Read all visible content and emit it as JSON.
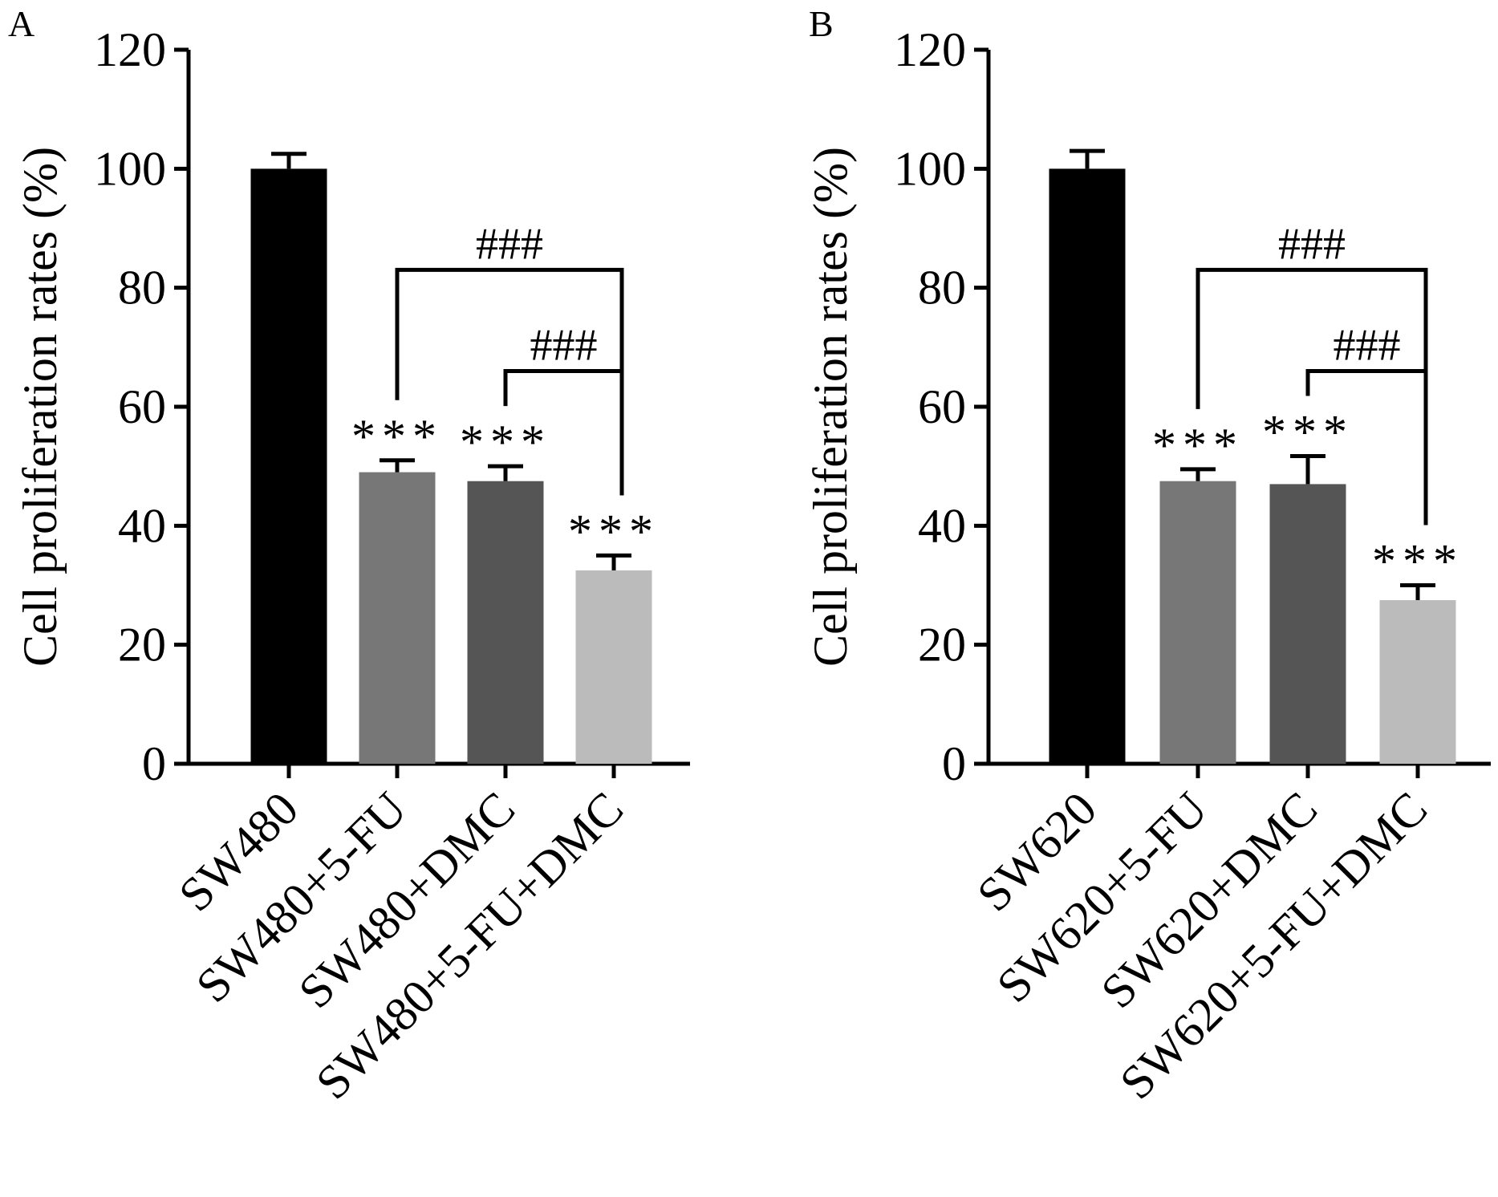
{
  "chart_data": [
    {
      "panel": "A",
      "type": "bar",
      "ylabel": "Cell proliferation rates (%)",
      "ylim": [
        0,
        120
      ],
      "yticks": [
        0,
        20,
        40,
        60,
        80,
        100,
        120
      ],
      "categories": [
        "SW480",
        "SW480+5-FU",
        "SW480+DMC",
        "SW480+5-FU+DMC"
      ],
      "values": [
        100,
        49,
        47.5,
        32.5
      ],
      "errors": [
        2.5,
        2,
        2.5,
        2.5
      ],
      "bar_colors": [
        "#000000",
        "#777777",
        "#555555",
        "#bbbbbb"
      ],
      "annotations": [
        "",
        "***",
        "***",
        "***"
      ],
      "comparisons": [
        {
          "from": 1,
          "to": 3,
          "label": "###",
          "y": 83
        },
        {
          "from": 2,
          "to": 3,
          "label": "###",
          "y": 66
        }
      ]
    },
    {
      "panel": "B",
      "type": "bar",
      "ylabel": "Cell proliferation rates (%)",
      "ylim": [
        0,
        120
      ],
      "yticks": [
        0,
        20,
        40,
        60,
        80,
        100,
        120
      ],
      "categories": [
        "SW620",
        "SW620+5-FU",
        "SW620+DMC",
        "SW620+5-FU+DMC"
      ],
      "values": [
        100,
        47.5,
        47,
        27.5
      ],
      "errors": [
        3,
        2,
        4.7,
        2.5
      ],
      "bar_colors": [
        "#000000",
        "#777777",
        "#555555",
        "#bbbbbb"
      ],
      "annotations": [
        "",
        "***",
        "***",
        "***"
      ],
      "comparisons": [
        {
          "from": 1,
          "to": 3,
          "label": "###",
          "y": 83
        },
        {
          "from": 2,
          "to": 3,
          "label": "###",
          "y": 66
        }
      ]
    }
  ]
}
